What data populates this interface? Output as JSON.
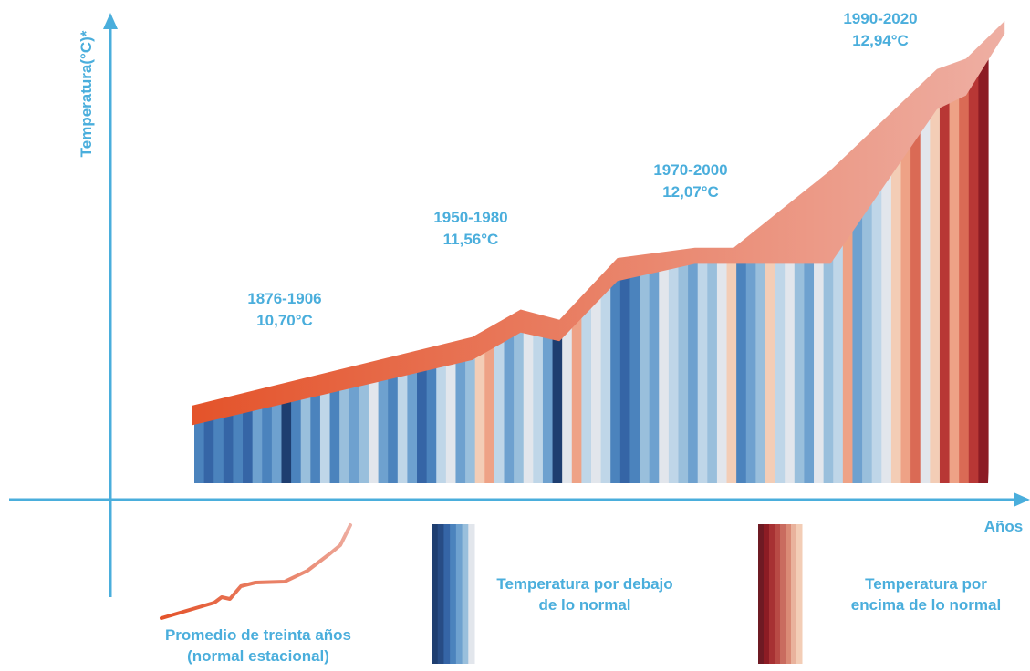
{
  "colors": {
    "axis": "#4aaedc",
    "label": "#4aaedc",
    "legend_label": "#4aaedc",
    "normal_line_start": "#e4532a",
    "normal_line_end": "#eeafa3"
  },
  "chart_data": {
    "type": "area",
    "title": "",
    "xlabel": "Años",
    "ylabel": "Temperatura(°C)*",
    "grid": false,
    "stripe_palette": [
      "#1e3e70",
      "#3565a6",
      "#4b83bd",
      "#6ea1cf",
      "#99bfdc",
      "#bfd6e8",
      "#e2e6ec",
      "#f3cdb6",
      "#eea286",
      "#da6a55",
      "#b83735",
      "#8c1c24"
    ],
    "stripe_levels": [
      2,
      1,
      2,
      1,
      2,
      1,
      3,
      2,
      3,
      0,
      2,
      4,
      2,
      5,
      2,
      4,
      3,
      4,
      6,
      3,
      2,
      5,
      3,
      1,
      2,
      5,
      6,
      3,
      4,
      7,
      8,
      5,
      3,
      4,
      6,
      5,
      3,
      0,
      6,
      8,
      5,
      6,
      5,
      2,
      1,
      2,
      4,
      3,
      6,
      5,
      4,
      3,
      5,
      4,
      6,
      7,
      2,
      3,
      4,
      7,
      5,
      6,
      4,
      3,
      6,
      4,
      5,
      8,
      3,
      4,
      5,
      6,
      7,
      8,
      9,
      6,
      7,
      10,
      8,
      9,
      10,
      11
    ],
    "normal_line": {
      "points_top": [
        [
          0,
          10.7
        ],
        [
          29,
          11.1
        ],
        [
          34,
          11.26
        ],
        [
          38,
          11.2
        ],
        [
          44,
          11.56
        ],
        [
          52,
          11.62
        ],
        [
          56,
          11.62
        ],
        [
          66,
          12.07
        ],
        [
          77,
          12.66
        ],
        [
          80,
          12.72
        ],
        [
          84,
          12.94
        ]
      ],
      "points_bottom": [
        [
          0,
          10.66
        ],
        [
          29,
          11.04
        ],
        [
          34,
          11.2
        ],
        [
          38,
          11.15
        ],
        [
          44,
          11.5
        ],
        [
          52,
          11.6
        ],
        [
          66,
          11.6
        ],
        [
          77,
          12.5
        ],
        [
          80,
          12.58
        ],
        [
          84,
          12.94
        ]
      ]
    },
    "normals": [
      {
        "period": "1876-1906",
        "value": "10,70°C"
      },
      {
        "period": "1950-1980",
        "value": "11,56°C"
      },
      {
        "period": "1970-2000",
        "value": "12,07°C"
      },
      {
        "period": "1990-2020",
        "value": "12,94°C"
      }
    ]
  },
  "legend": {
    "line_label_1": "Promedio de treinta años",
    "line_label_2": "(normal estacional)",
    "below_label_1": "Temperatura por debajo",
    "below_label_2": "de lo normal",
    "above_label_1": "Temperatura por",
    "above_label_2": "encima de lo normal",
    "below_colors": [
      "#1e3e70",
      "#274c85",
      "#3565a6",
      "#4b83bd",
      "#6ea1cf",
      "#99bfdc",
      "#e2e6ec"
    ],
    "above_colors": [
      "#6e1a23",
      "#8c1c24",
      "#a73133",
      "#b84a45",
      "#c96b5f",
      "#da8a76",
      "#e9b29c",
      "#f3cdb6"
    ]
  }
}
